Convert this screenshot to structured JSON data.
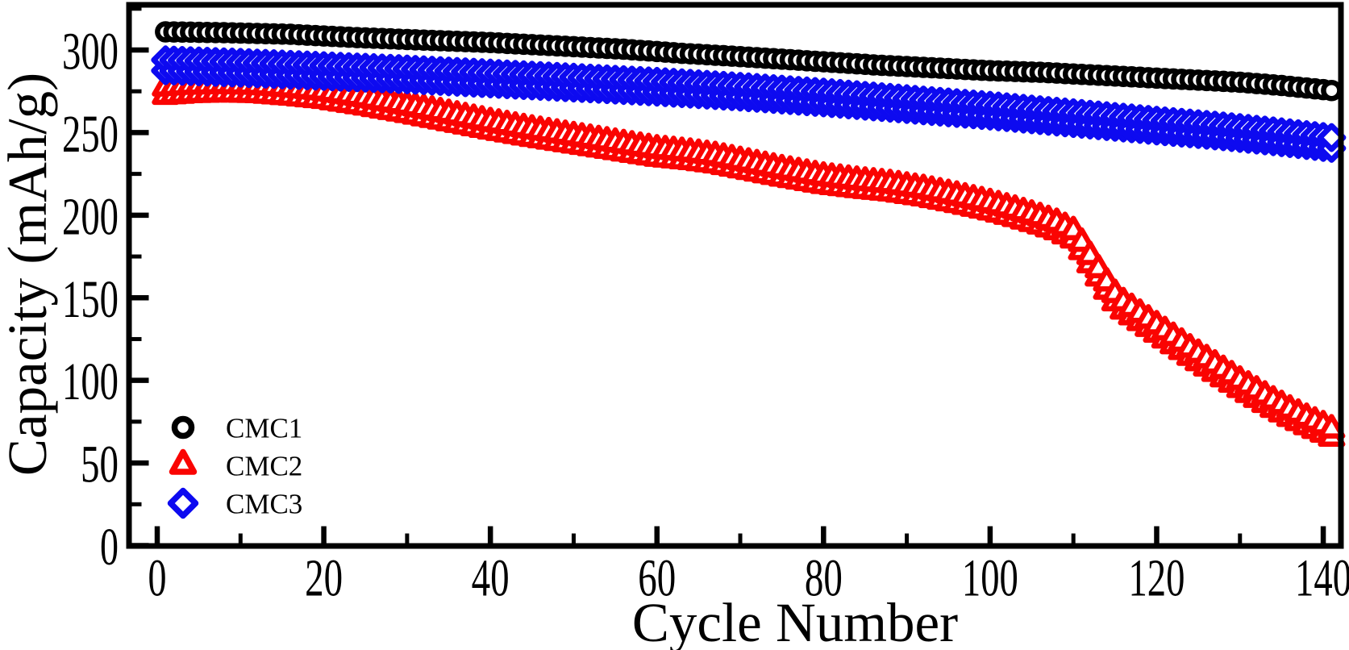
{
  "figure": {
    "background": "#ffffff"
  },
  "chart_data": {
    "type": "scatter",
    "title": "",
    "xlabel": "Cycle Number",
    "ylabel": "Capacity (mAh/g)",
    "xlim": [
      -3.5,
      142.5
    ],
    "ylim": [
      0,
      327.5
    ],
    "grid": false,
    "x_ticks": {
      "major": [
        0,
        20,
        40,
        60,
        80,
        100,
        120,
        140
      ],
      "minor": [
        10,
        30,
        50,
        70,
        90,
        110,
        130
      ]
    },
    "y_ticks": {
      "major": [
        0,
        50,
        100,
        150,
        200,
        250,
        300
      ],
      "minor": [
        25,
        75,
        125,
        175,
        225,
        275,
        325
      ]
    },
    "legend": {
      "position": "lower-left",
      "entries": [
        {
          "label": "CMC1",
          "marker": "open-circle",
          "color": "#000000"
        },
        {
          "label": "CMC2",
          "marker": "open-triangle-up",
          "color": "#fa0402"
        },
        {
          "label": "CMC3",
          "marker": "open-diamond",
          "color": "#0d0af0"
        }
      ]
    },
    "series": [
      {
        "name": "CMC1",
        "marker": "open-circle",
        "color": "#000000",
        "rows": 1,
        "row_gap_mahg": 0,
        "cycle_range": [
          1,
          141
        ],
        "keypoints": [
          [
            1,
            311
          ],
          [
            8,
            310.5
          ],
          [
            16,
            309.5
          ],
          [
            24,
            307.5
          ],
          [
            32,
            306
          ],
          [
            40,
            304.5
          ],
          [
            48,
            302.5
          ],
          [
            56,
            300.5
          ],
          [
            63,
            298
          ],
          [
            70,
            296
          ],
          [
            78,
            293.5
          ],
          [
            86,
            291
          ],
          [
            94,
            289
          ],
          [
            100,
            287.5
          ],
          [
            106,
            286.5
          ],
          [
            112,
            285
          ],
          [
            118,
            283.5
          ],
          [
            124,
            282
          ],
          [
            130,
            280.5
          ],
          [
            135,
            278.5
          ],
          [
            138,
            277
          ],
          [
            141,
            275.5
          ]
        ]
      },
      {
        "name": "CMC2",
        "marker": "open-triangle-up",
        "color": "#fa0402",
        "rows": 2,
        "row_gap_mahg": 5,
        "cycle_range": [
          1,
          141
        ],
        "keypoints": [
          [
            1,
            278
          ],
          [
            4,
            279
          ],
          [
            8,
            279.5
          ],
          [
            12,
            279
          ],
          [
            16,
            277.5
          ],
          [
            20,
            275.5
          ],
          [
            25,
            271.5
          ],
          [
            30,
            267
          ],
          [
            35,
            262
          ],
          [
            40,
            257
          ],
          [
            45,
            252.5
          ],
          [
            50,
            248.5
          ],
          [
            55,
            244.5
          ],
          [
            60,
            240.5
          ],
          [
            64,
            238.5
          ],
          [
            67,
            236.5
          ],
          [
            70,
            233.5
          ],
          [
            75,
            228.5
          ],
          [
            80,
            224
          ],
          [
            84,
            221.5
          ],
          [
            88,
            219.5
          ],
          [
            92,
            216.5
          ],
          [
            96,
            212.5
          ],
          [
            100,
            208
          ],
          [
            103,
            204
          ],
          [
            106,
            199.5
          ],
          [
            108,
            196
          ],
          [
            110,
            191
          ],
          [
            111,
            184
          ],
          [
            112,
            176
          ],
          [
            113,
            168
          ],
          [
            114,
            160
          ],
          [
            115,
            153
          ],
          [
            116,
            148
          ],
          [
            118,
            141
          ],
          [
            120,
            134
          ],
          [
            122,
            127
          ],
          [
            124,
            120
          ],
          [
            126,
            113.5
          ],
          [
            128,
            107
          ],
          [
            130,
            100.5
          ],
          [
            132,
            94.5
          ],
          [
            134,
            88.5
          ],
          [
            136,
            83
          ],
          [
            138,
            78
          ],
          [
            140,
            73.5
          ],
          [
            141,
            71
          ]
        ]
      },
      {
        "name": "CMC3",
        "marker": "open-diamond",
        "color": "#0d0af0",
        "rows": 2,
        "row_gap_mahg": 6.5,
        "cycle_range": [
          1,
          141
        ],
        "keypoints": [
          [
            1,
            294
          ],
          [
            10,
            292.5
          ],
          [
            20,
            290.5
          ],
          [
            30,
            288.5
          ],
          [
            40,
            286
          ],
          [
            50,
            283.5
          ],
          [
            60,
            281
          ],
          [
            70,
            278
          ],
          [
            80,
            274.5
          ],
          [
            90,
            270.5
          ],
          [
            100,
            266.5
          ],
          [
            110,
            262
          ],
          [
            120,
            257.5
          ],
          [
            127,
            254.5
          ],
          [
            134,
            251
          ],
          [
            141,
            247
          ]
        ]
      }
    ]
  }
}
